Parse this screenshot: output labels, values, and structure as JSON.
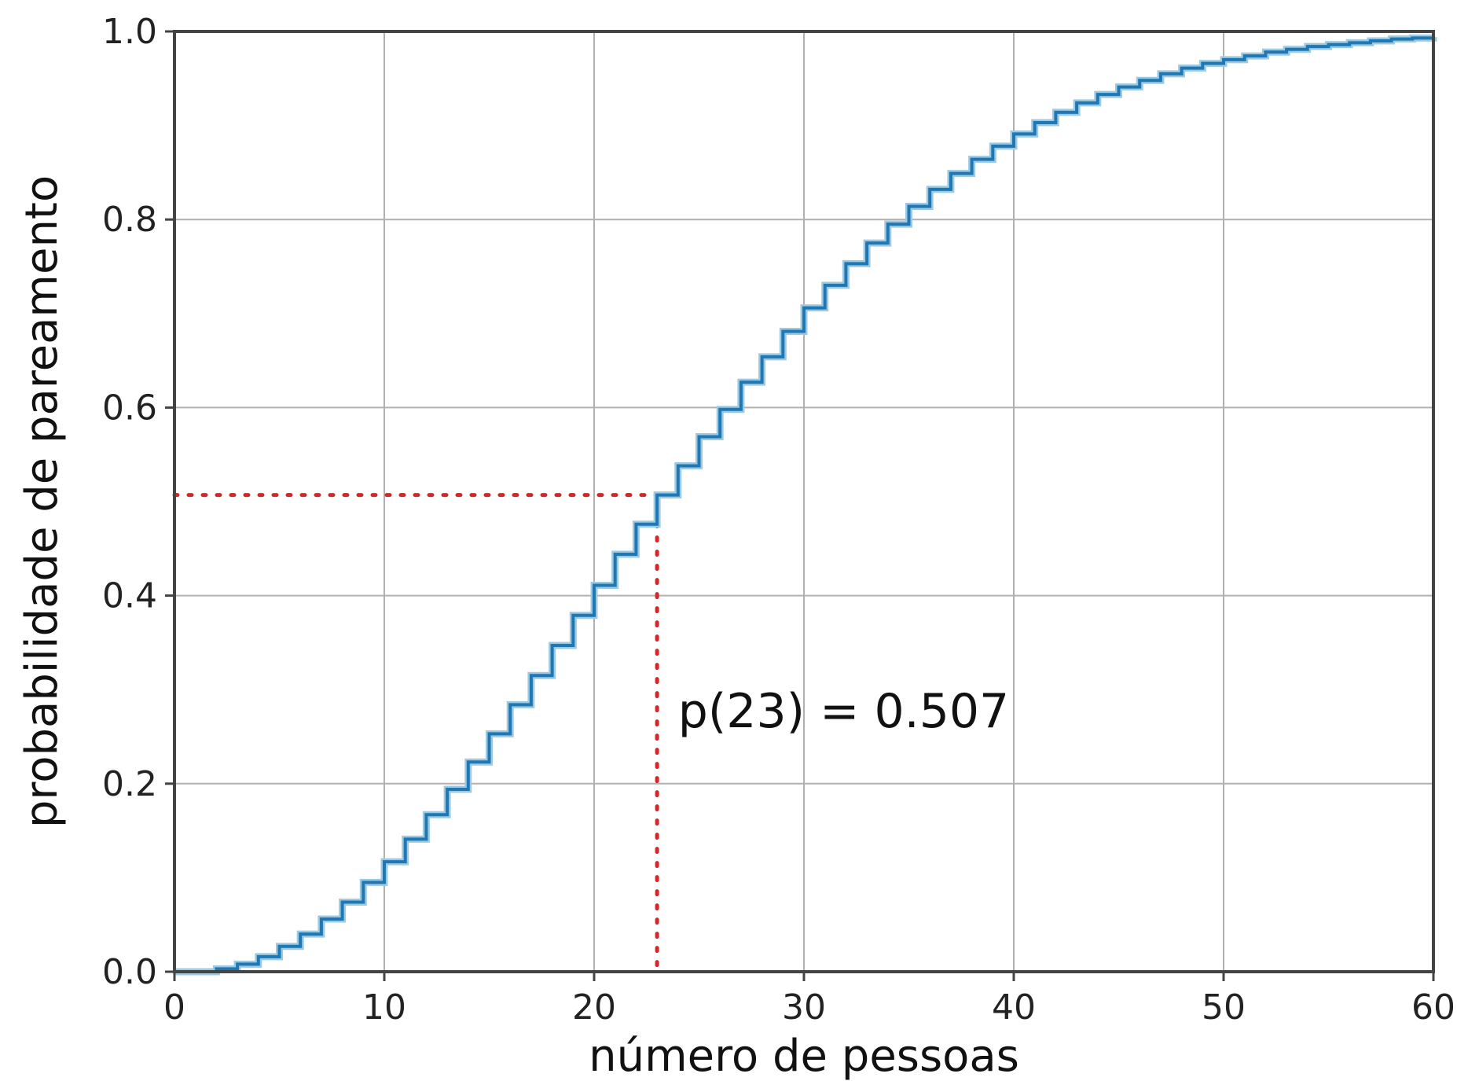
{
  "chart_data": {
    "type": "line",
    "title": "",
    "xlabel": "número de pessoas",
    "ylabel": "probabilidade de pareamento",
    "xlim": [
      0,
      60
    ],
    "ylim": [
      0,
      1.0
    ],
    "x_ticks": [
      "0",
      "10",
      "20",
      "30",
      "40",
      "50",
      "60"
    ],
    "y_ticks": [
      "0.0",
      "0.2",
      "0.4",
      "0.6",
      "0.8",
      "1.0"
    ],
    "grid": true,
    "step": true,
    "series": [
      {
        "color": "#1f77b4",
        "x": [
          0,
          1,
          2,
          3,
          4,
          5,
          6,
          7,
          8,
          9,
          10,
          11,
          12,
          13,
          14,
          15,
          16,
          17,
          18,
          19,
          20,
          21,
          22,
          23,
          24,
          25,
          26,
          27,
          28,
          29,
          30,
          31,
          32,
          33,
          34,
          35,
          36,
          37,
          38,
          39,
          40,
          41,
          42,
          43,
          44,
          45,
          46,
          47,
          48,
          49,
          50,
          51,
          52,
          53,
          54,
          55,
          56,
          57,
          58,
          59,
          60
        ],
        "values": [
          0,
          0,
          0.003,
          0.008,
          0.016,
          0.027,
          0.04,
          0.056,
          0.074,
          0.095,
          0.117,
          0.141,
          0.167,
          0.194,
          0.223,
          0.253,
          0.284,
          0.315,
          0.347,
          0.379,
          0.411,
          0.444,
          0.476,
          0.507,
          0.538,
          0.569,
          0.598,
          0.627,
          0.654,
          0.681,
          0.706,
          0.73,
          0.753,
          0.775,
          0.795,
          0.814,
          0.832,
          0.849,
          0.864,
          0.878,
          0.891,
          0.903,
          0.914,
          0.924,
          0.933,
          0.941,
          0.948,
          0.955,
          0.961,
          0.966,
          0.97,
          0.974,
          0.978,
          0.981,
          0.984,
          0.986,
          0.988,
          0.99,
          0.992,
          0.993,
          0.994
        ]
      }
    ],
    "reference_lines": {
      "color": "#d62728",
      "x": 23,
      "y": 0.507,
      "style": "dotted"
    },
    "annotations": [
      {
        "text": "p(23) = 0.507",
        "x": 24,
        "y": 0.26
      }
    ]
  }
}
